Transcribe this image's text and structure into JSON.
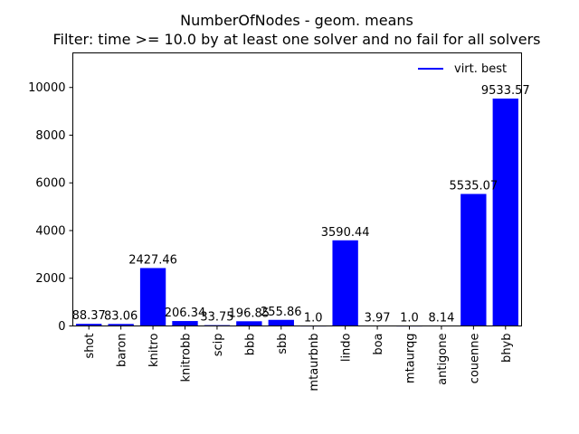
{
  "chart_data": {
    "type": "bar",
    "title": "NumberOfNodes - geom. means",
    "subtitle": "Filter: time >= 10.0 by at least one solver and no fail for all solvers",
    "xlabel": "",
    "ylabel": "",
    "ylim": [
      0,
      11450
    ],
    "yticks": [
      0,
      2000,
      4000,
      6000,
      8000,
      10000
    ],
    "categories": [
      "shot",
      "baron",
      "knitro",
      "knitrobb",
      "scip",
      "bbb",
      "sbb",
      "mtaurbnb",
      "lindo",
      "boa",
      "mtaurqg",
      "antigone",
      "couenne",
      "bhyb"
    ],
    "values": [
      88.37,
      83.06,
      2427.46,
      206.34,
      33.75,
      196.85,
      255.86,
      1.0,
      3590.44,
      3.97,
      1.0,
      8.14,
      5535.07,
      9533.57
    ],
    "value_labels": [
      "88.37",
      "83.06",
      "2427.46",
      "206.34",
      "33.75",
      "196.85",
      "255.86",
      "1.0",
      "3590.44",
      "3.97",
      "1.0",
      "8.14",
      "5535.07",
      "9533.57"
    ],
    "bar_color": "#0000ff",
    "legend": {
      "position": "top-right",
      "entries": [
        {
          "label": "virt. best",
          "color": "#0000ff"
        }
      ]
    },
    "grid": false
  }
}
